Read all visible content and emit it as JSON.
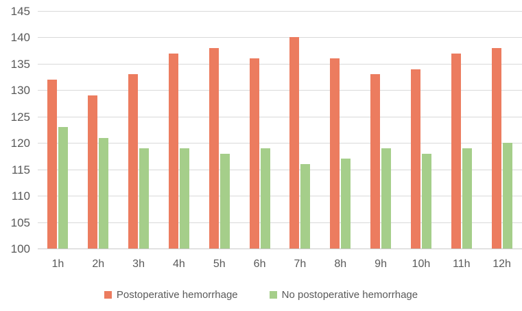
{
  "chart_data": {
    "type": "bar",
    "title": "",
    "xlabel": "",
    "ylabel": "",
    "categories": [
      "1h",
      "2h",
      "3h",
      "4h",
      "5h",
      "6h",
      "7h",
      "8h",
      "9h",
      "10h",
      "11h",
      "12h"
    ],
    "series": [
      {
        "name": "Postoperative hemorrhage",
        "color": "#EC7C5F",
        "values": [
          132,
          129,
          133,
          137,
          138,
          136,
          140,
          136,
          133,
          134,
          137,
          138
        ]
      },
      {
        "name": "No postoperative hemorrhage",
        "color": "#A5CE8A",
        "values": [
          123,
          121,
          119,
          119,
          118,
          119,
          116,
          117,
          119,
          118,
          119,
          120
        ]
      }
    ],
    "ylim": [
      100,
      145
    ],
    "yticks": [
      145,
      140,
      135,
      130,
      125,
      120,
      115,
      110,
      105,
      100
    ],
    "grid": true,
    "legend_position": "bottom"
  },
  "colors": {
    "gridline": "#D9D9D9",
    "baseline": "#C9C9C9",
    "axis_text": "#595959",
    "background": "#FFFFFF"
  }
}
